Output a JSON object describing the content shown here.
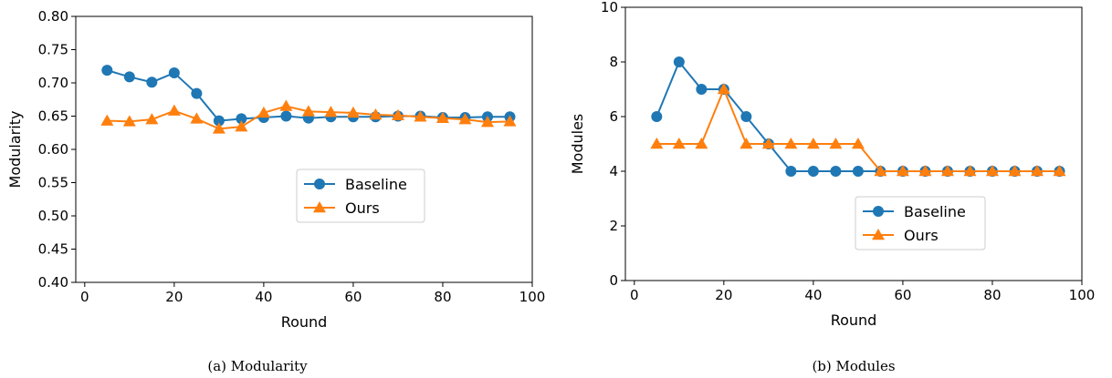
{
  "chart_data": [
    {
      "type": "line",
      "caption": "(a)  Modularity",
      "xlabel": "Round",
      "ylabel": "Modularity",
      "xlim": [
        -2,
        100
      ],
      "ylim": [
        0.4,
        0.8
      ],
      "xticks": [
        "0",
        "20",
        "40",
        "60",
        "80",
        "100"
      ],
      "yticks": [
        "0.40",
        "0.45",
        "0.50",
        "0.55",
        "0.60",
        "0.65",
        "0.70",
        "0.75",
        "0.80"
      ],
      "grid": false,
      "legend": "center-right",
      "x": [
        5,
        10,
        15,
        20,
        25,
        30,
        35,
        40,
        45,
        50,
        55,
        60,
        65,
        70,
        75,
        80,
        85,
        90,
        95
      ],
      "series": [
        {
          "name": "Baseline",
          "color": "#1f77b4",
          "marker": "circle",
          "values": [
            0.719,
            0.709,
            0.701,
            0.715,
            0.684,
            0.643,
            0.646,
            0.648,
            0.65,
            0.647,
            0.649,
            0.649,
            0.649,
            0.65,
            0.65,
            0.648,
            0.648,
            0.649,
            0.649
          ]
        },
        {
          "name": "Ours",
          "color": "#ff7f0e",
          "marker": "triangle",
          "values": [
            0.643,
            0.642,
            0.645,
            0.658,
            0.646,
            0.631,
            0.634,
            0.655,
            0.665,
            0.657,
            0.656,
            0.655,
            0.652,
            0.651,
            0.649,
            0.647,
            0.645,
            0.641,
            0.642
          ]
        }
      ]
    },
    {
      "type": "line",
      "caption": "(b)  Modules",
      "xlabel": "Round",
      "ylabel": "Modules",
      "xlim": [
        -2,
        100
      ],
      "ylim": [
        0,
        10
      ],
      "xticks": [
        "0",
        "20",
        "40",
        "60",
        "80",
        "100"
      ],
      "yticks": [
        "0",
        "2",
        "4",
        "6",
        "8",
        "10"
      ],
      "grid": false,
      "legend": "lower-right",
      "x": [
        5,
        10,
        15,
        20,
        25,
        30,
        35,
        40,
        45,
        50,
        55,
        60,
        65,
        70,
        75,
        80,
        85,
        90,
        95
      ],
      "series": [
        {
          "name": "Baseline",
          "color": "#1f77b4",
          "marker": "circle",
          "values": [
            6,
            8,
            7,
            7,
            6,
            5,
            4,
            4,
            4,
            4,
            4,
            4,
            4,
            4,
            4,
            4,
            4,
            4,
            4
          ]
        },
        {
          "name": "Ours",
          "color": "#ff7f0e",
          "marker": "triangle",
          "values": [
            5,
            5,
            5,
            7,
            5,
            5,
            5,
            5,
            5,
            5,
            4,
            4,
            4,
            4,
            4,
            4,
            4,
            4,
            4
          ]
        }
      ]
    }
  ]
}
